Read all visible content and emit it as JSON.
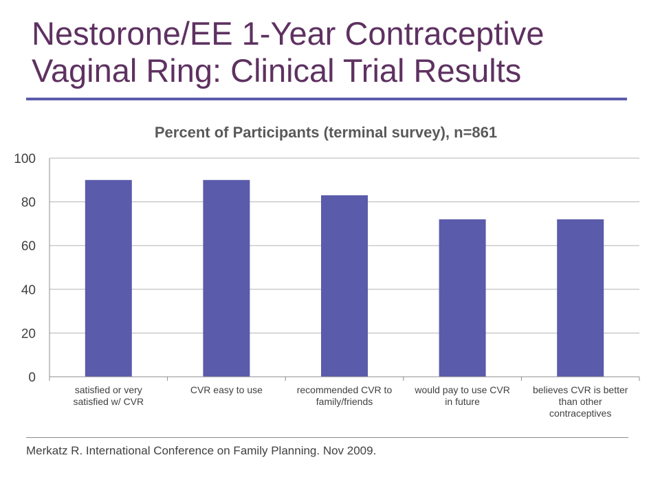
{
  "slide": {
    "title_line1": "Nestorone/EE 1-Year Contraceptive",
    "title_line2": "Vaginal Ring: Clinical Trial Results",
    "citation": "Merkatz R. International Conference on Family Planning. Nov 2009."
  },
  "chart_data": {
    "type": "bar",
    "title": "Percent of Participants (terminal survey), n=861",
    "categories": [
      [
        "satisfied or very",
        "satisfied w/ CVR"
      ],
      [
        "CVR easy to use"
      ],
      [
        "recommended CVR to",
        "family/friends"
      ],
      [
        "would pay to use CVR",
        "in future"
      ],
      [
        "believes CVR is better",
        "than other",
        "contraceptives"
      ]
    ],
    "values": [
      90,
      90,
      83,
      72,
      72
    ],
    "ylim": [
      0,
      100
    ],
    "yticks": [
      0,
      20,
      40,
      60,
      80,
      100
    ],
    "grid": true,
    "bar_color": "#5b5bab",
    "xlabel": "",
    "ylabel": ""
  }
}
